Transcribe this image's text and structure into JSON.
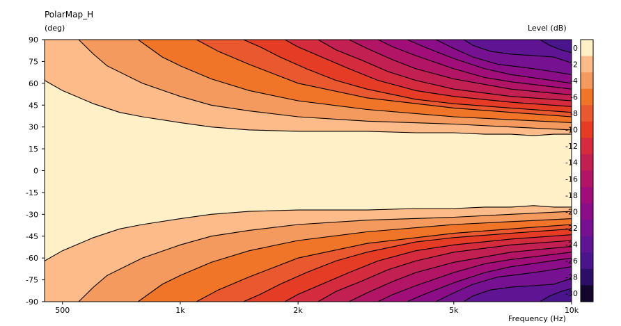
{
  "chart_data": {
    "type": "heatmap",
    "title": "PolarMap_H",
    "ylabel": "(deg)",
    "xlabel": "Frequency  (Hz)",
    "colorbar_label": "Level  (dB)",
    "x_scale": "log",
    "xlim": [
      450,
      10000
    ],
    "ylim": [
      -90,
      90
    ],
    "x_ticks": [
      500,
      1000,
      2000,
      5000,
      10000
    ],
    "x_tick_labels": [
      "500",
      "1k",
      "2k",
      "5k",
      "10k"
    ],
    "y_ticks": [
      90,
      75,
      60,
      45,
      30,
      15,
      0,
      -15,
      -30,
      -45,
      -60,
      -75,
      -90
    ],
    "y_tick_labels": [
      "90",
      "75",
      "60",
      "45",
      "30",
      "15",
      "0",
      "-15",
      "-30",
      "-45",
      "-60",
      "-75",
      "-90"
    ],
    "colorbar_ticks": [
      0,
      -2,
      -4,
      -6,
      -8,
      -10,
      -12,
      -14,
      -16,
      -18,
      -20,
      -22,
      -24,
      -26,
      -28,
      -30
    ],
    "colorbar_tick_labels": [
      "0",
      "-2",
      "-4",
      "-6",
      "-8",
      "-10",
      "-12",
      "-14",
      "-16",
      "-18",
      "-20",
      "-22",
      "-24",
      "-26",
      "-28",
      "-30"
    ],
    "contour_step_db": 2,
    "colors": [
      "#fff0c8",
      "#fdbb8a",
      "#f59a5e",
      "#f07528",
      "#e9582f",
      "#e43c25",
      "#d42b3e",
      "#c21f52",
      "#b21466",
      "#a10e79",
      "#8c0d88",
      "#761292",
      "#5f1494",
      "#4a148c",
      "#2c0e66",
      "#12072a"
    ],
    "boundaries": [
      {
        "level": -2,
        "freq": [
          450,
          500,
          600,
          700,
          800,
          1000,
          1200,
          1500,
          2000,
          2500,
          3000,
          4000,
          5000,
          6000,
          7000,
          8000,
          9000,
          10000
        ],
        "angle": [
          62,
          55,
          46,
          40,
          37,
          33,
          30,
          28,
          27,
          27,
          27,
          26,
          26,
          25,
          25,
          24,
          25,
          25
        ]
      },
      {
        "level": -4,
        "freq": [
          550,
          600,
          650,
          800,
          1000,
          1200,
          1500,
          2000,
          3000,
          5000,
          7000,
          10000
        ],
        "angle": [
          90,
          80,
          72,
          60,
          51,
          45,
          41,
          37,
          34,
          32,
          30,
          28
        ]
      },
      {
        "level": -6,
        "freq": [
          780,
          900,
          1000,
          1200,
          1500,
          2000,
          3000,
          5000,
          7000,
          10000
        ],
        "angle": [
          90,
          78,
          72,
          63,
          55,
          48,
          42,
          37,
          35,
          33
        ]
      },
      {
        "level": -8,
        "freq": [
          1100,
          1250,
          1500,
          2000,
          3000,
          5000,
          7000,
          10000
        ],
        "angle": [
          90,
          82,
          73,
          60,
          50,
          43,
          40,
          37
        ]
      },
      {
        "level": -10,
        "freq": [
          1450,
          1600,
          1800,
          2100,
          2500,
          3000,
          4000,
          5000,
          7000,
          10000
        ],
        "angle": [
          90,
          85,
          78,
          70,
          62,
          56,
          49,
          46,
          43,
          40
        ]
      },
      {
        "level": -12,
        "freq": [
          1850,
          2000,
          2300,
          2700,
          3200,
          4000,
          5000,
          7000,
          10000
        ],
        "angle": [
          90,
          85,
          78,
          70,
          62,
          55,
          51,
          47,
          44
        ]
      },
      {
        "level": -14,
        "freq": [
          2250,
          2500,
          2900,
          3400,
          4000,
          5000,
          7000,
          10000
        ],
        "angle": [
          90,
          83,
          76,
          68,
          62,
          56,
          51,
          48
        ]
      },
      {
        "level": -16,
        "freq": [
          2700,
          3000,
          3500,
          4000,
          5000,
          7000,
          10000
        ],
        "angle": [
          90,
          84,
          76,
          70,
          63,
          56,
          52
        ]
      },
      {
        "level": -18,
        "freq": [
          3200,
          3500,
          4000,
          5000,
          6000,
          7000,
          10000
        ],
        "angle": [
          90,
          85,
          79,
          70,
          64,
          61,
          56
        ]
      },
      {
        "level": -20,
        "freq": [
          3800,
          4200,
          5000,
          6000,
          7000,
          10000
        ],
        "angle": [
          90,
          85,
          77,
          70,
          66,
          60
        ]
      },
      {
        "level": -22,
        "freq": [
          4500,
          5000,
          5600,
          6500,
          7500,
          8500,
          10000
        ],
        "angle": [
          90,
          84,
          78,
          73,
          71,
          69,
          66
        ]
      },
      {
        "level": -24,
        "freq": [
          5300,
          5600,
          6200,
          7000,
          8000,
          9000,
          10000
        ],
        "angle": [
          90,
          86,
          82,
          80,
          79,
          78,
          74
        ]
      },
      {
        "level": -26,
        "freq": [
          8300,
          8800,
          9400,
          10000
        ],
        "angle": [
          90,
          86,
          83,
          81
        ]
      }
    ]
  }
}
